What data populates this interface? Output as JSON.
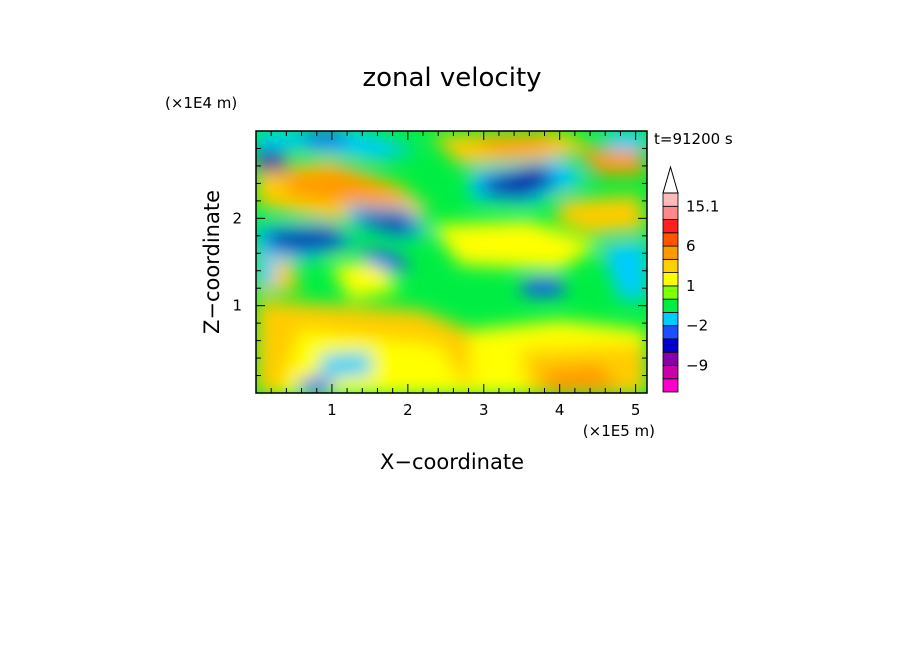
{
  "chart_data": {
    "type": "heatmap",
    "title": "zonal velocity",
    "xlabel": "X−coordinate",
    "ylabel": "Z−coordinate",
    "x_scale_label": "(×1E5 m)",
    "y_scale_label": "(×1E4 m)",
    "time_label": "t=91200 s",
    "xlim": [
      0,
      5.15
    ],
    "ylim": [
      0,
      3.0
    ],
    "x_ticks": [
      1,
      2,
      3,
      4,
      5
    ],
    "y_ticks": [
      1,
      2
    ],
    "colorbar": {
      "levels": [
        -15,
        -12,
        -9,
        -6,
        -3,
        -2,
        -1,
        0,
        1,
        2,
        3,
        6,
        9,
        12,
        15.1,
        18
      ],
      "labeled_ticks": [
        {
          "value": -9,
          "label": "−9"
        },
        {
          "value": -2,
          "label": "−2"
        },
        {
          "value": 1,
          "label": "1"
        },
        {
          "value": 6,
          "label": "6"
        },
        {
          "value": 15.1,
          "label": "15.1"
        }
      ],
      "colors": [
        "#ff00cc",
        "#cc00aa",
        "#8800aa",
        "#0000cc",
        "#1a50ff",
        "#00ccff",
        "#00ee44",
        "#80ff00",
        "#ffff00",
        "#ffd000",
        "#ff9900",
        "#ff5500",
        "#ff2020",
        "#ff8888",
        "#ffbbbb"
      ],
      "extend_max": true
    },
    "field_colors": {
      "strong_negative": "#0a0aa0",
      "negative": "#1a50ff",
      "weak_negative": "#00ccff",
      "near_zero": "#00ee44",
      "weak_positive": "#ffff00",
      "positive": "#ffcc00",
      "strong_positive": "#ff9900"
    }
  }
}
